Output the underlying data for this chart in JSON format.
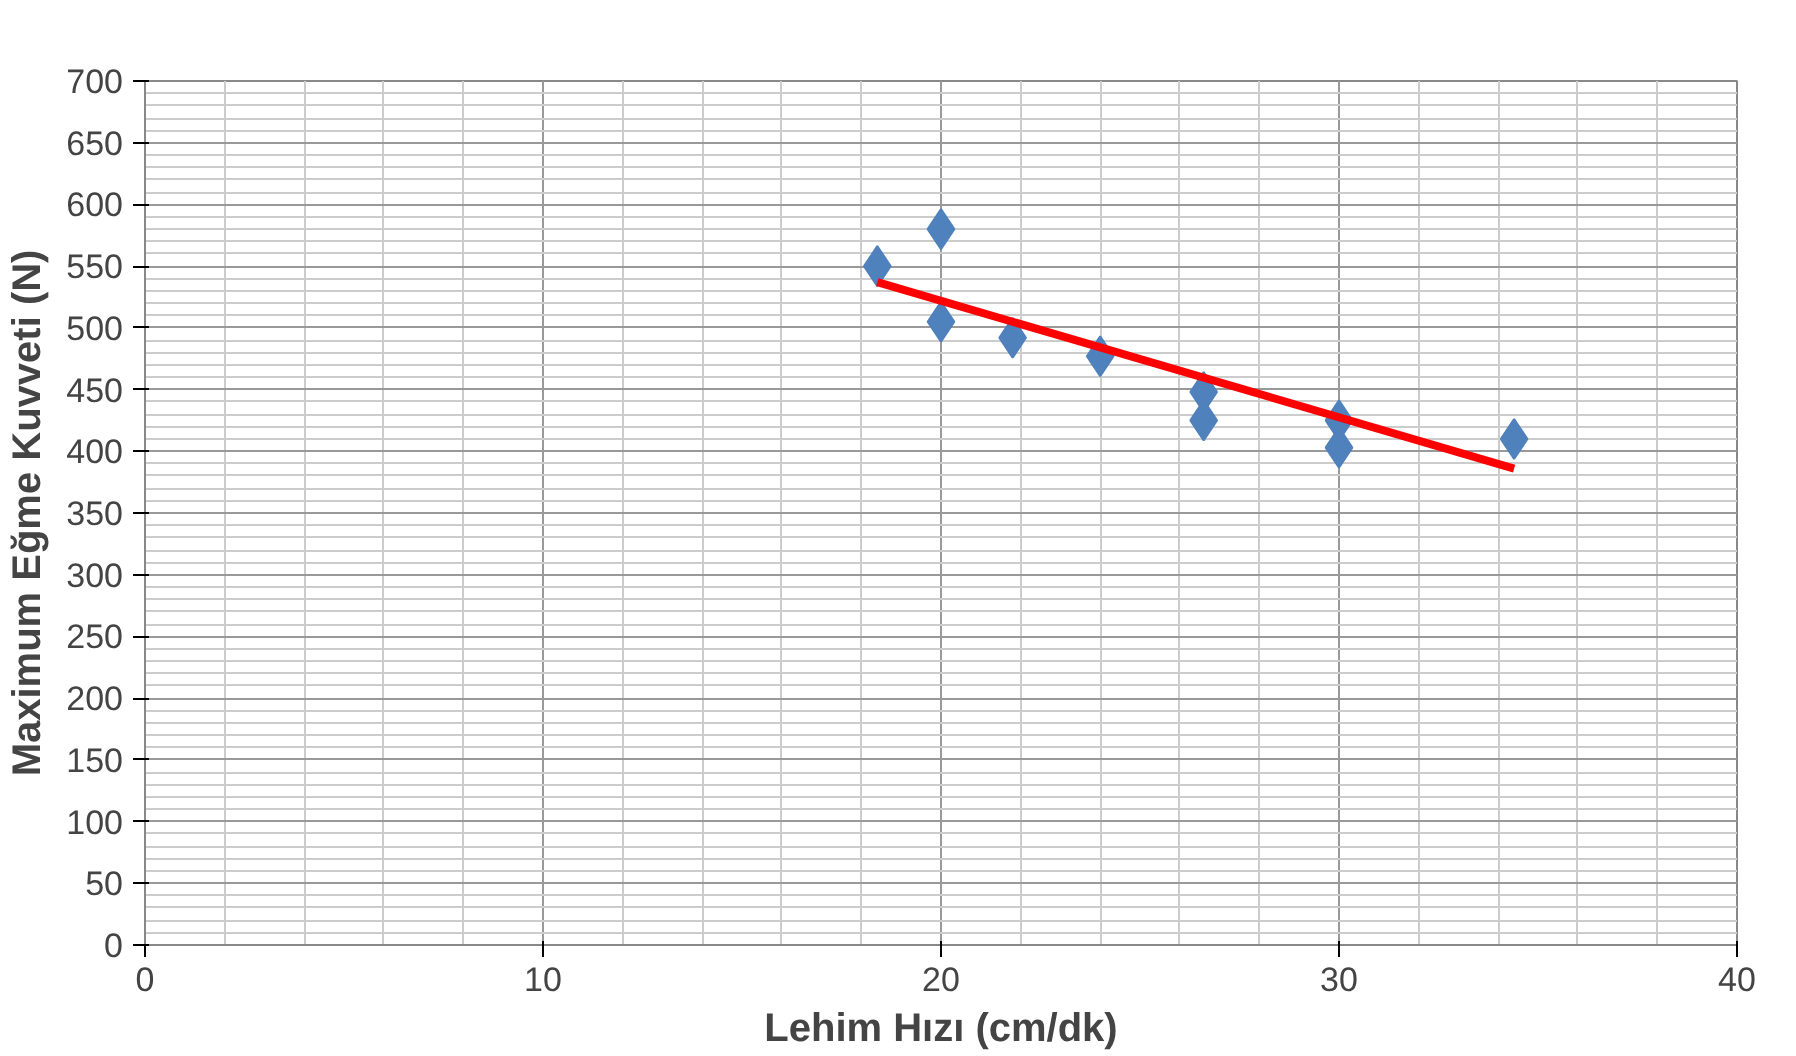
{
  "chart_data": {
    "type": "scatter",
    "xlabel": "Lehim Hızı (cm/dk)",
    "ylabel": "Maximum Eğme Kuvveti (N)",
    "xlim": [
      0,
      40
    ],
    "xticks": [
      0,
      10,
      20,
      30,
      40
    ],
    "ylim": [
      0,
      700
    ],
    "yticks": [
      0,
      50,
      100,
      150,
      200,
      250,
      300,
      350,
      400,
      450,
      500,
      550,
      600,
      650,
      700
    ],
    "grid": true,
    "series": [
      {
        "marker": "diamond",
        "color": "#4f81bd",
        "x": [
          18.4,
          20,
          20,
          21.8,
          24,
          26.6,
          26.6,
          30,
          30,
          34.4
        ],
        "values": [
          550,
          580,
          505,
          492,
          477,
          448,
          425,
          425,
          403,
          410
        ]
      },
      {
        "type": "line",
        "color": "#ff0000",
        "line_style": "solid",
        "x": [
          18.4,
          34.4
        ],
        "values": [
          537,
          386
        ]
      }
    ]
  }
}
